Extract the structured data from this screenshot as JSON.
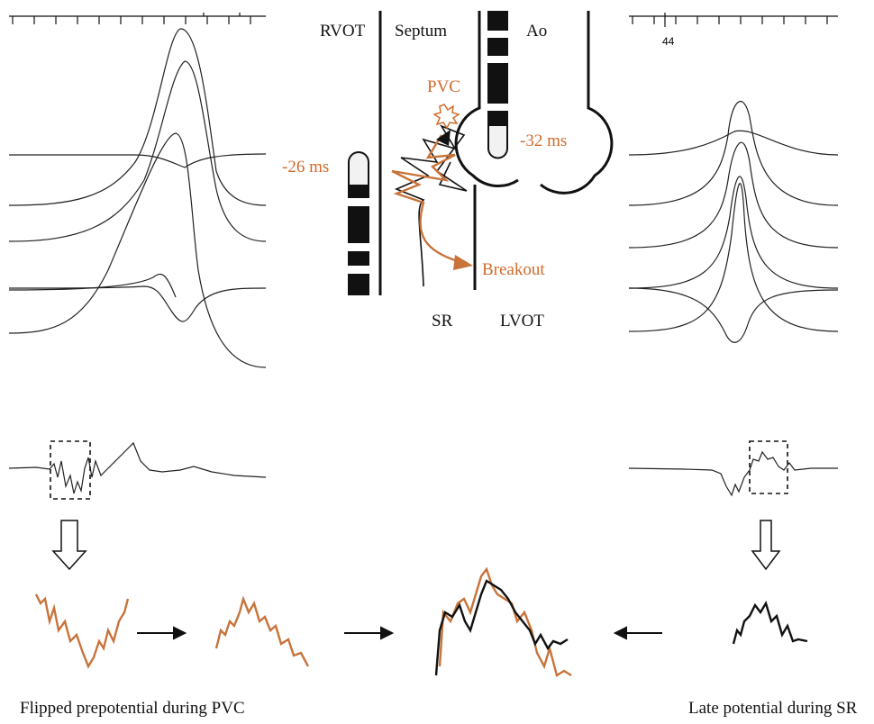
{
  "labels": {
    "rvot": "RVOT",
    "septum": "Septum",
    "ao": "Ao",
    "pvc": "PVC",
    "ao_time": "-32 ms",
    "rvot_time": "-26 ms",
    "breakout": "Breakout",
    "sr": "SR",
    "lvot": "LVOT"
  },
  "right_scale_label": "44",
  "captions": {
    "left": "Flipped prepotential during PVC",
    "right": "Late potential during SR"
  }
}
